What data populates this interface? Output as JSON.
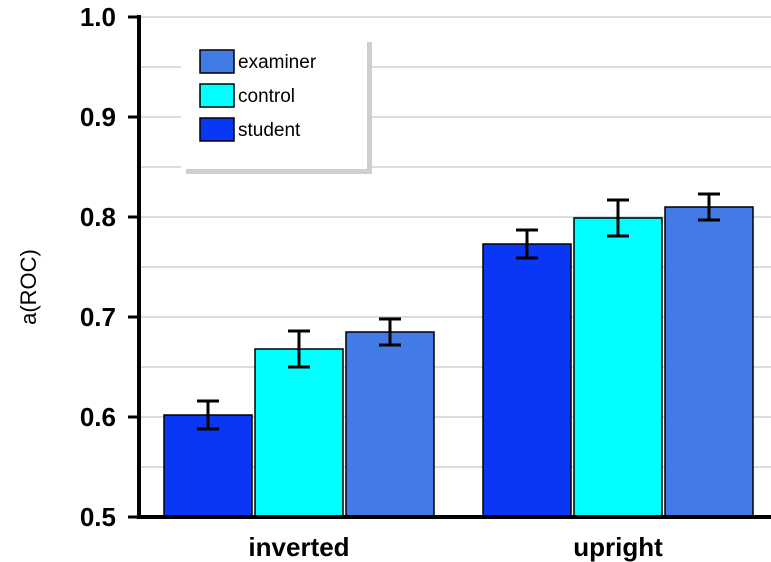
{
  "chart_data": {
    "type": "bar",
    "title": "",
    "xlabel": "",
    "ylabel": "a(ROC)",
    "ylim": [
      0.5,
      1.0
    ],
    "yticks": [
      "0.5",
      "0.6",
      "0.7",
      "0.8",
      "0.9",
      "1.0"
    ],
    "ytick_values": [
      0.5,
      0.6,
      0.7,
      0.8,
      0.9,
      1.0
    ],
    "grid": true,
    "legend_position": "top-left",
    "categories": [
      "inverted",
      "upright"
    ],
    "series": [
      {
        "name": "student",
        "color": "#0a37f5",
        "values": [
          0.602,
          0.773
        ],
        "errors": [
          0.014,
          0.014
        ]
      },
      {
        "name": "control",
        "color": "#00ffff",
        "values": [
          0.668,
          0.799
        ],
        "errors": [
          0.018,
          0.018
        ]
      },
      {
        "name": "examiner",
        "color": "#427ae6",
        "values": [
          0.685,
          0.81
        ],
        "errors": [
          0.013,
          0.013
        ]
      }
    ],
    "legend_order": [
      "examiner",
      "control",
      "student"
    ]
  }
}
